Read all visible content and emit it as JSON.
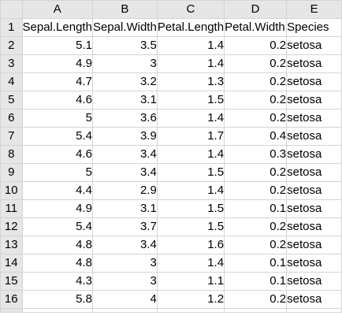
{
  "columns": [
    "A",
    "B",
    "C",
    "D",
    "E"
  ],
  "row_numbers": [
    "1",
    "2",
    "3",
    "4",
    "5",
    "6",
    "7",
    "8",
    "9",
    "10",
    "11",
    "12",
    "13",
    "14",
    "15",
    "16"
  ],
  "header_row": [
    "Sepal.Length",
    "Sepal.Width",
    "Petal.Length",
    "Petal.Width",
    "Species"
  ],
  "rows": [
    [
      "5.1",
      "3.5",
      "1.4",
      "0.2",
      "setosa"
    ],
    [
      "4.9",
      "3",
      "1.4",
      "0.2",
      "setosa"
    ],
    [
      "4.7",
      "3.2",
      "1.3",
      "0.2",
      "setosa"
    ],
    [
      "4.6",
      "3.1",
      "1.5",
      "0.2",
      "setosa"
    ],
    [
      "5",
      "3.6",
      "1.4",
      "0.2",
      "setosa"
    ],
    [
      "5.4",
      "3.9",
      "1.7",
      "0.4",
      "setosa"
    ],
    [
      "4.6",
      "3.4",
      "1.4",
      "0.3",
      "setosa"
    ],
    [
      "5",
      "3.4",
      "1.5",
      "0.2",
      "setosa"
    ],
    [
      "4.4",
      "2.9",
      "1.4",
      "0.2",
      "setosa"
    ],
    [
      "4.9",
      "3.1",
      "1.5",
      "0.1",
      "setosa"
    ],
    [
      "5.4",
      "3.7",
      "1.5",
      "0.2",
      "setosa"
    ],
    [
      "4.8",
      "3.4",
      "1.6",
      "0.2",
      "setosa"
    ],
    [
      "4.8",
      "3",
      "1.4",
      "0.1",
      "setosa"
    ],
    [
      "4.3",
      "3",
      "1.1",
      "0.1",
      "setosa"
    ],
    [
      "5.8",
      "4",
      "1.2",
      "0.2",
      "setosa"
    ]
  ]
}
